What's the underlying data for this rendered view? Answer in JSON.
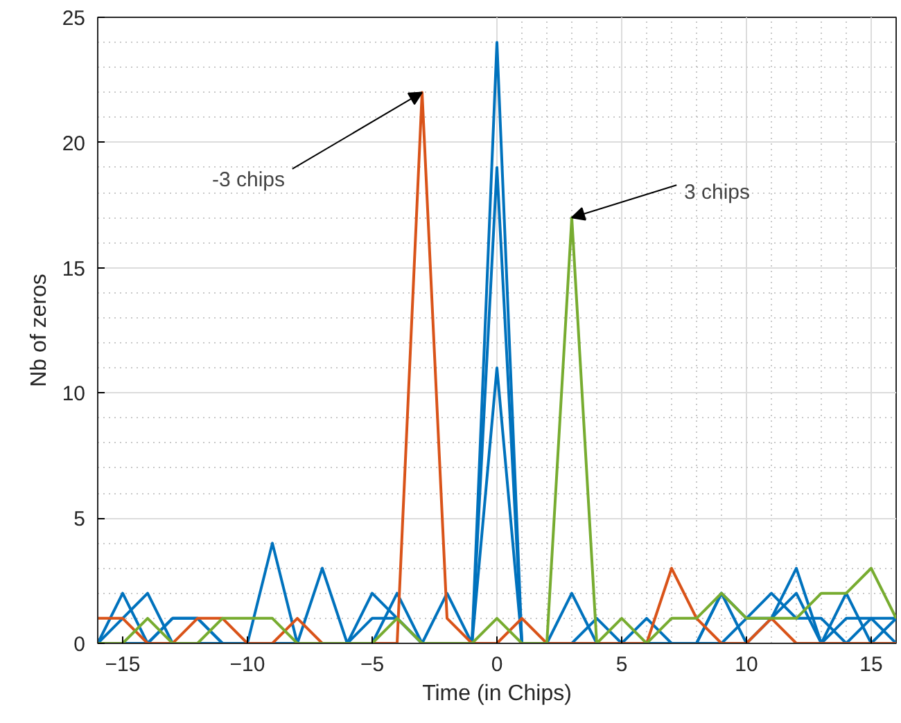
{
  "chart_data": {
    "type": "line",
    "xlabel": "Time (in Chips)",
    "ylabel": "Nb of zeros",
    "x": [
      -16,
      -15,
      -14,
      -13,
      -12,
      -11,
      -10,
      -9,
      -8,
      -7,
      -6,
      -5,
      -4,
      -3,
      -2,
      -1,
      0,
      1,
      2,
      3,
      4,
      5,
      6,
      7,
      8,
      9,
      10,
      11,
      12,
      13,
      14,
      15,
      16
    ],
    "series": [
      {
        "color": "#0072bd",
        "values": [
          0,
          2,
          0,
          1,
          1,
          0,
          0,
          4,
          0,
          3,
          0,
          2,
          1,
          0,
          2,
          0,
          24,
          0,
          0,
          2,
          0,
          0,
          1,
          0,
          0,
          2,
          0,
          1,
          3,
          0,
          2,
          0,
          1
        ]
      },
      {
        "color": "#0072bd",
        "values": [
          0,
          1,
          2,
          0,
          0,
          0,
          0,
          0,
          0,
          0,
          0,
          1,
          1,
          0,
          0,
          0,
          19,
          0,
          0,
          0,
          1,
          0,
          0,
          0,
          0,
          0,
          1,
          2,
          1,
          1,
          0,
          1,
          1
        ]
      },
      {
        "color": "#0072bd",
        "values": [
          0,
          0,
          0,
          1,
          1,
          0,
          0,
          0,
          0,
          0,
          0,
          0,
          2,
          0,
          0,
          0,
          11,
          0,
          0,
          0,
          0,
          0,
          0,
          0,
          0,
          2,
          1,
          1,
          2,
          0,
          1,
          1,
          0
        ]
      },
      {
        "color": "#d95319",
        "values": [
          1,
          1,
          0,
          0,
          1,
          1,
          0,
          0,
          1,
          0,
          0,
          0,
          0,
          22,
          1,
          0,
          0,
          1,
          0,
          0,
          0,
          0,
          0,
          3,
          1,
          0,
          0,
          1,
          0,
          0,
          0,
          0,
          0
        ]
      },
      {
        "color": "#77ac30",
        "values": [
          0,
          0,
          1,
          0,
          0,
          1,
          1,
          1,
          0,
          0,
          0,
          0,
          1,
          0,
          0,
          0,
          1,
          0,
          0,
          17,
          0,
          1,
          0,
          1,
          1,
          2,
          1,
          1,
          1,
          2,
          2,
          3,
          1
        ]
      }
    ],
    "xlim": [
      -16,
      16
    ],
    "ylim": [
      0,
      25
    ],
    "xticks": [
      -15,
      -10,
      -5,
      0,
      5,
      10,
      15
    ],
    "yticks": [
      0,
      5,
      10,
      15,
      20,
      25
    ],
    "grid": true,
    "annotations": [
      {
        "text": "-3 chips",
        "x": -3,
        "y": 22
      },
      {
        "text": "3 chips",
        "x": 3,
        "y": 17
      }
    ]
  }
}
